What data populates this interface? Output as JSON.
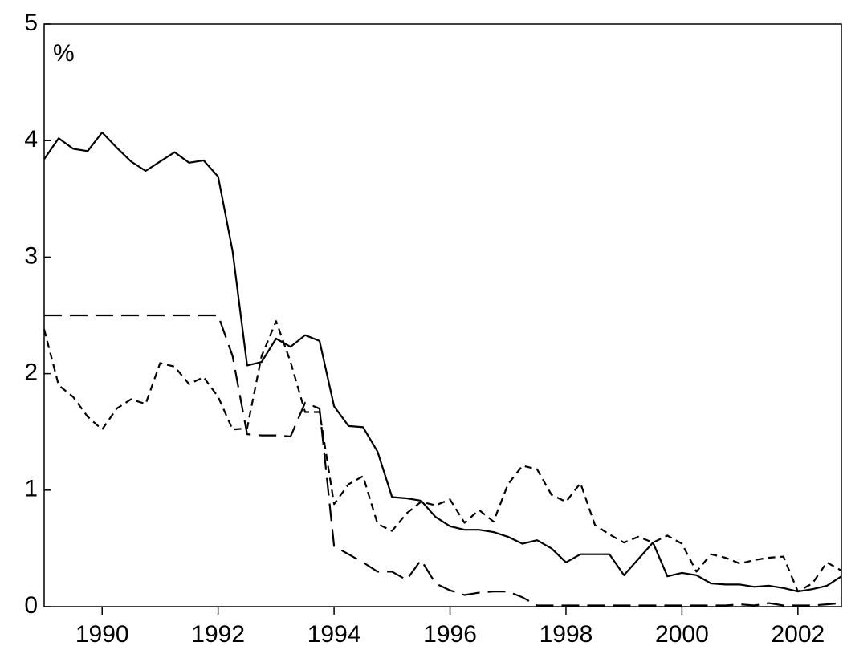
{
  "chart_data": {
    "type": "line",
    "y_label": "%",
    "x": [
      1989,
      1989.25,
      1989.5,
      1989.75,
      1990,
      1990.25,
      1990.5,
      1990.75,
      1991,
      1991.25,
      1991.5,
      1991.75,
      1992,
      1992.25,
      1992.5,
      1992.75,
      1993,
      1993.25,
      1993.5,
      1993.75,
      1994,
      1994.25,
      1994.5,
      1994.75,
      1995,
      1995.25,
      1995.5,
      1995.75,
      1996,
      1996.25,
      1996.5,
      1996.75,
      1997,
      1997.25,
      1997.5,
      1997.75,
      1998,
      1998.25,
      1998.5,
      1998.75,
      1999,
      1999.25,
      1999.5,
      1999.75,
      2000,
      2000.25,
      2000.5,
      2000.75,
      2001,
      2001.25,
      2001.5,
      2001.75,
      2002,
      2002.25,
      2002.5,
      2002.75
    ],
    "xlim": [
      1989,
      2002.75
    ],
    "xticks": [
      1990,
      1992,
      1994,
      1996,
      1998,
      2000,
      2002
    ],
    "ylim": [
      0,
      5
    ],
    "yticks": [
      0,
      1,
      2,
      3,
      4,
      5
    ],
    "series": [
      {
        "color": "#000000",
        "dash": "solid",
        "values": [
          3.84,
          4.02,
          3.93,
          3.91,
          4.07,
          3.94,
          3.82,
          3.74,
          3.82,
          3.9,
          3.81,
          3.83,
          3.69,
          3.05,
          2.07,
          2.1,
          2.3,
          2.23,
          2.33,
          2.28,
          1.72,
          1.55,
          1.54,
          1.33,
          0.94,
          0.93,
          0.91,
          0.77,
          0.69,
          0.66,
          0.66,
          0.64,
          0.6,
          0.54,
          0.57,
          0.5,
          0.38,
          0.45,
          0.45,
          0.45,
          0.27,
          0.41,
          0.55,
          0.26,
          0.29,
          0.27,
          0.2,
          0.19,
          0.19,
          0.17,
          0.18,
          0.16,
          0.13,
          0.15,
          0.18,
          0.26
        ]
      },
      {
        "color": "#000000",
        "dash": "long",
        "values": [
          2.5,
          2.5,
          2.5,
          2.5,
          2.5,
          2.5,
          2.5,
          2.5,
          2.5,
          2.5,
          2.5,
          2.5,
          2.5,
          2.15,
          1.48,
          1.47,
          1.47,
          1.46,
          1.75,
          1.7,
          0.52,
          0.45,
          0.38,
          0.3,
          0.3,
          0.23,
          0.4,
          0.2,
          0.14,
          0.1,
          0.12,
          0.13,
          0.13,
          0.08,
          0.01,
          0.01,
          0.01,
          0.01,
          0.01,
          0.01,
          0.01,
          0.01,
          0.01,
          0.01,
          0.01,
          0.01,
          0.01,
          0.01,
          0.02,
          0.01,
          0.03,
          0.01,
          0.01,
          0.01,
          0.02,
          0.03
        ]
      },
      {
        "color": "#000000",
        "dash": "short",
        "values": [
          2.38,
          1.9,
          1.8,
          1.63,
          1.52,
          1.7,
          1.78,
          1.74,
          2.09,
          2.06,
          1.91,
          1.97,
          1.8,
          1.52,
          1.53,
          2.15,
          2.45,
          2.1,
          1.67,
          1.67,
          0.88,
          1.05,
          1.12,
          0.71,
          0.65,
          0.8,
          0.9,
          0.87,
          0.92,
          0.72,
          0.83,
          0.73,
          1.05,
          1.21,
          1.18,
          0.96,
          0.9,
          1.06,
          0.7,
          0.62,
          0.55,
          0.6,
          0.55,
          0.61,
          0.54,
          0.3,
          0.45,
          0.42,
          0.37,
          0.4,
          0.42,
          0.43,
          0.13,
          0.2,
          0.38,
          0.31
        ]
      }
    ]
  }
}
